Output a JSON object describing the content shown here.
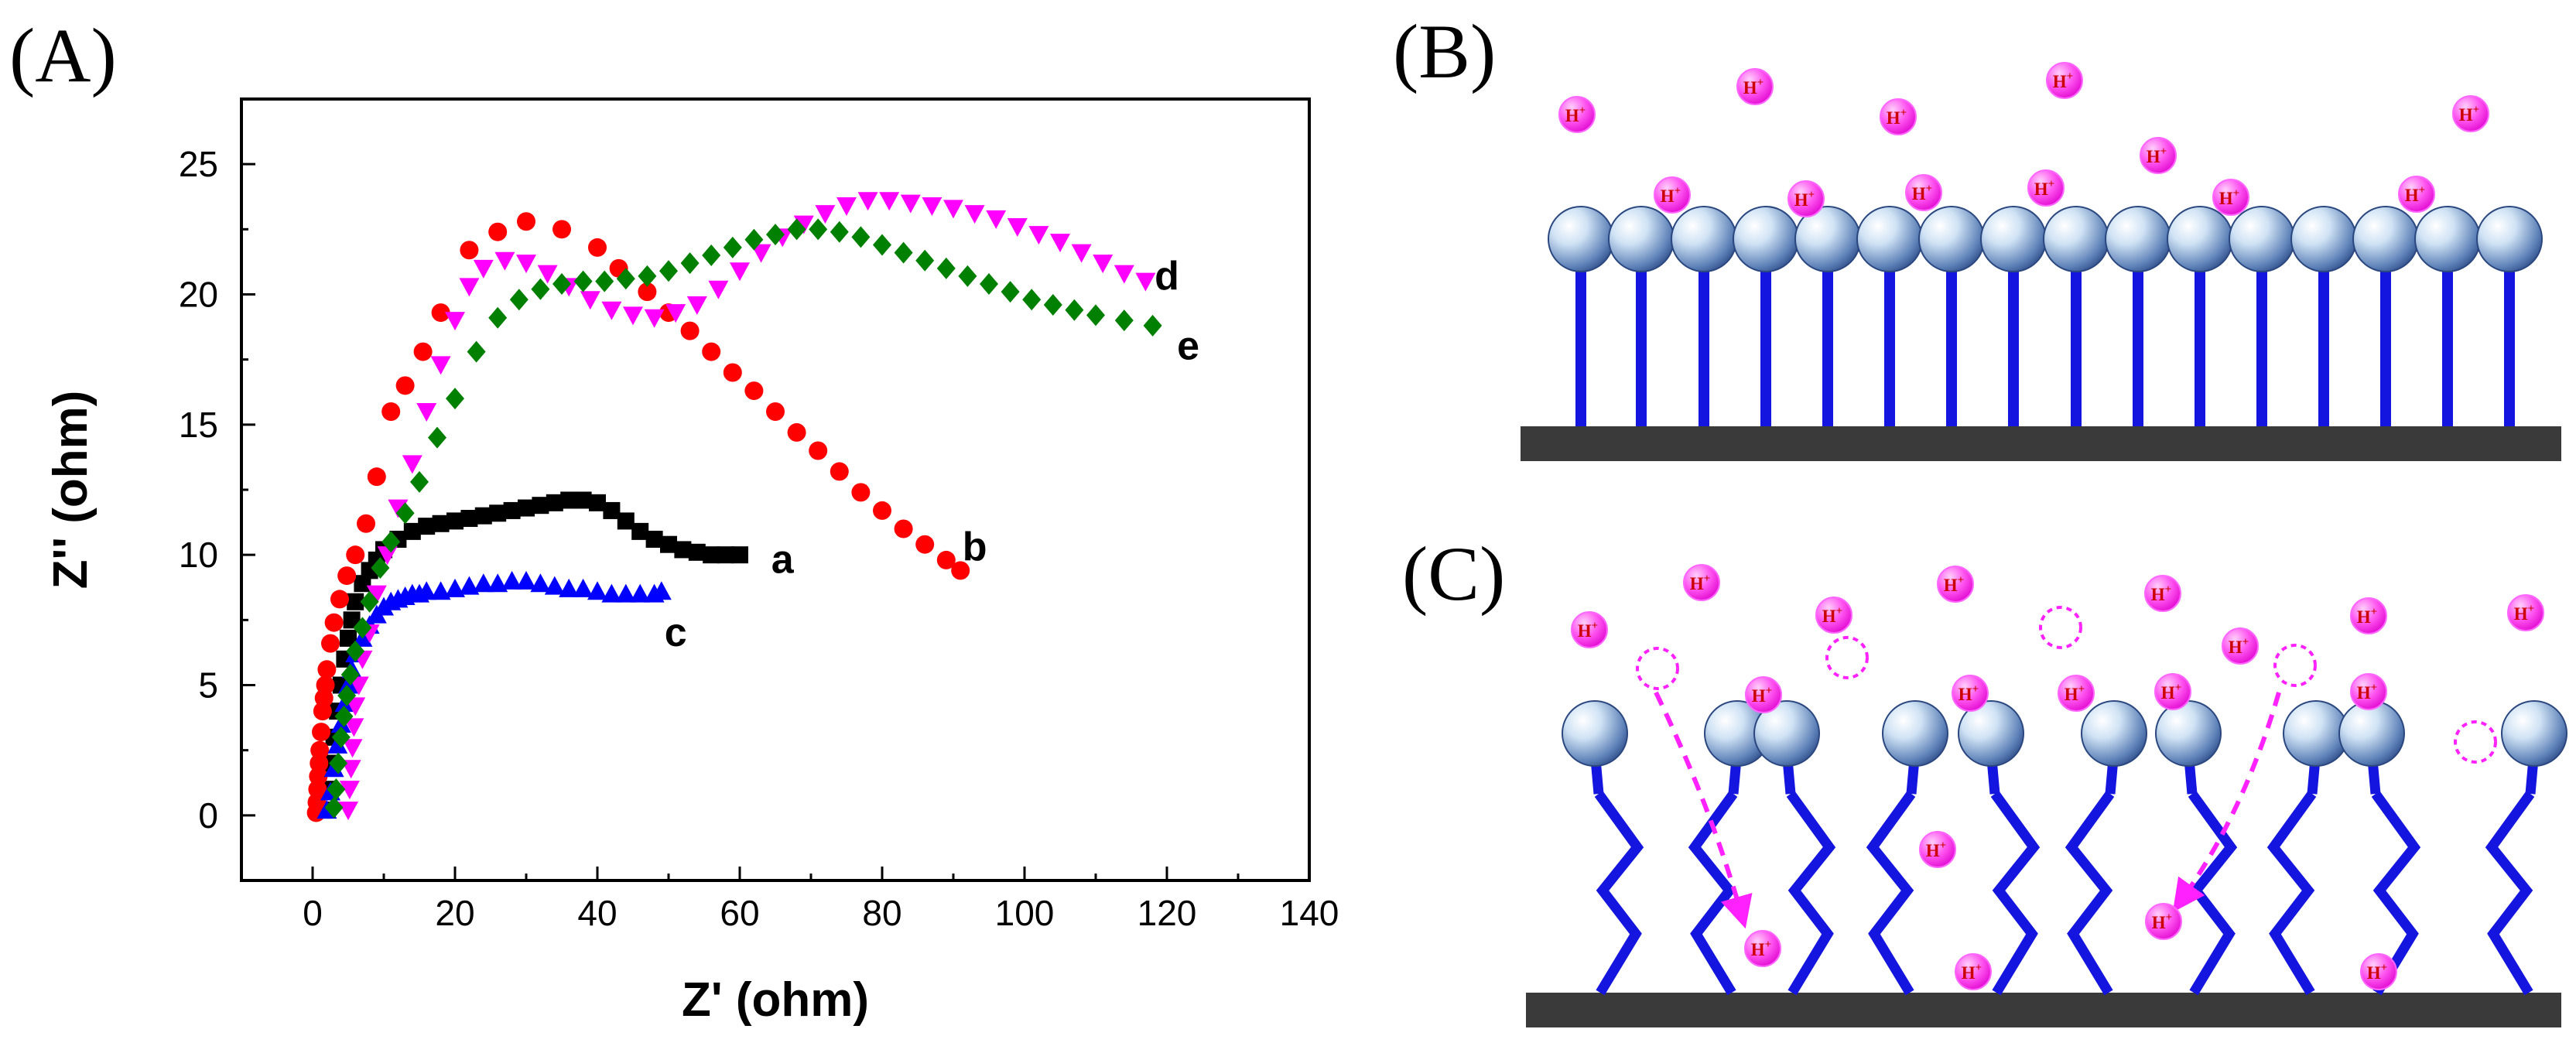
{
  "panels": {
    "a": "(A)",
    "b": "(B)",
    "c": "(C)"
  },
  "ion_label": "H",
  "ion_charge": "+",
  "colors": {
    "frame": "#000000",
    "lipid_tail": "#1515e0",
    "substrate": "#3a3a3a",
    "ion_fill": "#ff33ee",
    "ion_text": "#cc0000",
    "arrow": "#ff22ff"
  },
  "chart_data": {
    "type": "scatter",
    "title": "",
    "xlabel": "Z' (ohm)",
    "ylabel": "Z'' (ohm)",
    "xlim": [
      -10,
      140
    ],
    "ylim": [
      -2.5,
      27.5
    ],
    "xticks": [
      0,
      20,
      40,
      60,
      80,
      100,
      120,
      140
    ],
    "yticks": [
      0,
      5,
      10,
      15,
      20,
      25
    ],
    "grid": false,
    "legend": "none",
    "series": [
      {
        "name": "a",
        "color": "#000000",
        "marker": "square",
        "x": [
          1.5,
          2,
          2.5,
          3,
          3.5,
          4,
          4.5,
          5,
          5.5,
          6,
          7,
          8,
          9,
          10,
          12,
          14,
          16,
          18,
          20,
          22,
          24,
          26,
          28,
          30,
          32,
          34,
          36,
          38,
          40,
          42,
          44,
          46,
          48,
          50,
          52,
          54,
          56,
          58,
          60
        ],
        "y": [
          0.2,
          1,
          2,
          3,
          4,
          5,
          6,
          6.8,
          7.5,
          8.2,
          8.9,
          9.4,
          9.8,
          10.2,
          10.6,
          10.9,
          11.1,
          11.2,
          11.3,
          11.4,
          11.5,
          11.6,
          11.7,
          11.8,
          11.9,
          12,
          12.1,
          12.1,
          12,
          11.7,
          11.3,
          10.9,
          10.6,
          10.4,
          10.2,
          10.1,
          10,
          10,
          10
        ]
      },
      {
        "name": "b",
        "color": "#ff0000",
        "marker": "circle",
        "x": [
          0.5,
          0.6,
          0.7,
          0.8,
          0.9,
          1,
          1.2,
          1.4,
          1.6,
          1.8,
          2,
          2.5,
          3,
          3.8,
          4.8,
          6,
          7.5,
          9,
          11,
          13,
          15.5,
          18,
          22,
          26,
          30,
          35,
          40,
          43,
          47,
          50,
          53,
          56,
          59,
          62,
          65,
          68,
          71,
          74,
          77,
          80,
          83,
          86,
          89,
          91
        ],
        "y": [
          0.1,
          0.5,
          1,
          1.5,
          2,
          2.5,
          3.2,
          4,
          4.5,
          5,
          5.6,
          6.6,
          7.4,
          8.3,
          9.2,
          10,
          11.2,
          13,
          15.5,
          16.5,
          17.8,
          19.3,
          21.7,
          22.4,
          22.8,
          22.5,
          21.8,
          21,
          20.1,
          19.3,
          18.6,
          17.8,
          17,
          16.3,
          15.5,
          14.7,
          14,
          13.2,
          12.4,
          11.7,
          11,
          10.4,
          9.8,
          9.4
        ]
      },
      {
        "name": "c",
        "color": "#0000ff",
        "marker": "triangle-up",
        "x": [
          2,
          2.5,
          3,
          3.5,
          4,
          4.5,
          5,
          5.5,
          6,
          7,
          8,
          9,
          10,
          11,
          12,
          13,
          14,
          15,
          16,
          18,
          20,
          22,
          24,
          26,
          28,
          30,
          32,
          34,
          36,
          38,
          40,
          42,
          44,
          46,
          48,
          49
        ],
        "y": [
          0.2,
          0.9,
          1.8,
          2.7,
          3.5,
          4.3,
          5,
          5.6,
          6.2,
          6.8,
          7.3,
          7.7,
          8,
          8.2,
          8.3,
          8.4,
          8.5,
          8.5,
          8.6,
          8.6,
          8.7,
          8.8,
          8.9,
          8.9,
          9,
          9,
          8.9,
          8.8,
          8.7,
          8.7,
          8.6,
          8.5,
          8.5,
          8.5,
          8.5,
          8.6
        ]
      },
      {
        "name": "d",
        "color": "#ff00ff",
        "marker": "triangle-down",
        "x": [
          5,
          5.2,
          5.4,
          5.6,
          5.8,
          6,
          6.5,
          7,
          8,
          9,
          10.5,
          12,
          14,
          16,
          18,
          20,
          22,
          24,
          27,
          30,
          33,
          36,
          39,
          42,
          45,
          48,
          51,
          54,
          57,
          60,
          63,
          66,
          69,
          72,
          75,
          78,
          81,
          84,
          87,
          90,
          93,
          96,
          99,
          102,
          105,
          108,
          111,
          114,
          117
        ],
        "y": [
          0.2,
          1,
          1.8,
          2.6,
          3.4,
          4.2,
          5,
          6,
          7,
          8.5,
          10,
          11.8,
          13.5,
          15.5,
          17.3,
          19,
          20.3,
          21,
          21.3,
          21.2,
          20.8,
          20.3,
          19.8,
          19.4,
          19.2,
          19.1,
          19.3,
          19.6,
          20.2,
          20.9,
          21.6,
          22.2,
          22.7,
          23.1,
          23.4,
          23.6,
          23.6,
          23.5,
          23.4,
          23.3,
          23.1,
          22.9,
          22.6,
          22.3,
          22,
          21.6,
          21.2,
          20.8,
          20.5
        ]
      },
      {
        "name": "e",
        "color": "#008000",
        "marker": "diamond",
        "x": [
          3,
          3.3,
          3.6,
          4,
          4.4,
          4.8,
          5.3,
          6,
          7,
          8,
          9.5,
          11,
          13,
          15,
          17.5,
          20,
          23,
          26,
          29,
          32,
          35,
          38,
          41,
          44,
          47,
          50,
          53,
          56,
          59,
          62,
          65,
          68,
          71,
          74,
          77,
          80,
          83,
          86,
          89,
          92,
          95,
          98,
          101,
          104,
          107,
          110,
          114,
          118
        ],
        "y": [
          0.3,
          1,
          2,
          3,
          3.8,
          4.6,
          5.4,
          6.3,
          7.2,
          8.2,
          9.5,
          10.5,
          11.6,
          12.8,
          14.5,
          16,
          17.8,
          19.1,
          19.8,
          20.2,
          20.4,
          20.5,
          20.5,
          20.6,
          20.7,
          20.9,
          21.2,
          21.5,
          21.8,
          22.1,
          22.3,
          22.5,
          22.5,
          22.4,
          22.2,
          21.9,
          21.6,
          21.3,
          21,
          20.7,
          20.4,
          20.1,
          19.8,
          19.6,
          19.4,
          19.2,
          19,
          18.8
        ]
      }
    ],
    "annotations": [
      {
        "text": "a",
        "x": 66,
        "y": 9.3
      },
      {
        "text": "b",
        "x": 93,
        "y": 9.8
      },
      {
        "text": "c",
        "x": 51,
        "y": 6.5
      },
      {
        "text": "d",
        "x": 120,
        "y": 20.2
      },
      {
        "text": "e",
        "x": 123,
        "y": 17.5
      }
    ]
  }
}
